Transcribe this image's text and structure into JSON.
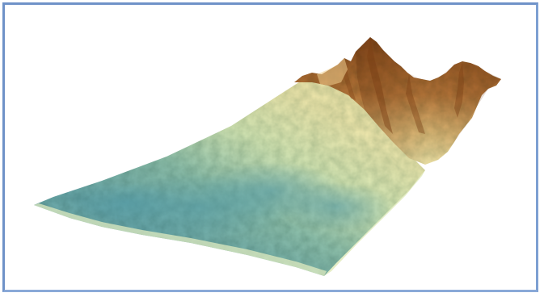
{
  "image": {
    "subject": "terrain-3d-surface",
    "frame_color": "#6f92c8",
    "background_color": "#ffffff",
    "palette": {
      "low": "#5fa5ab",
      "low_mid": "#8fbfad",
      "mid": "#cfe4b4",
      "high_mid": "#efe7ad",
      "high": "#c98a45",
      "peak": "#8b4c1a"
    }
  }
}
